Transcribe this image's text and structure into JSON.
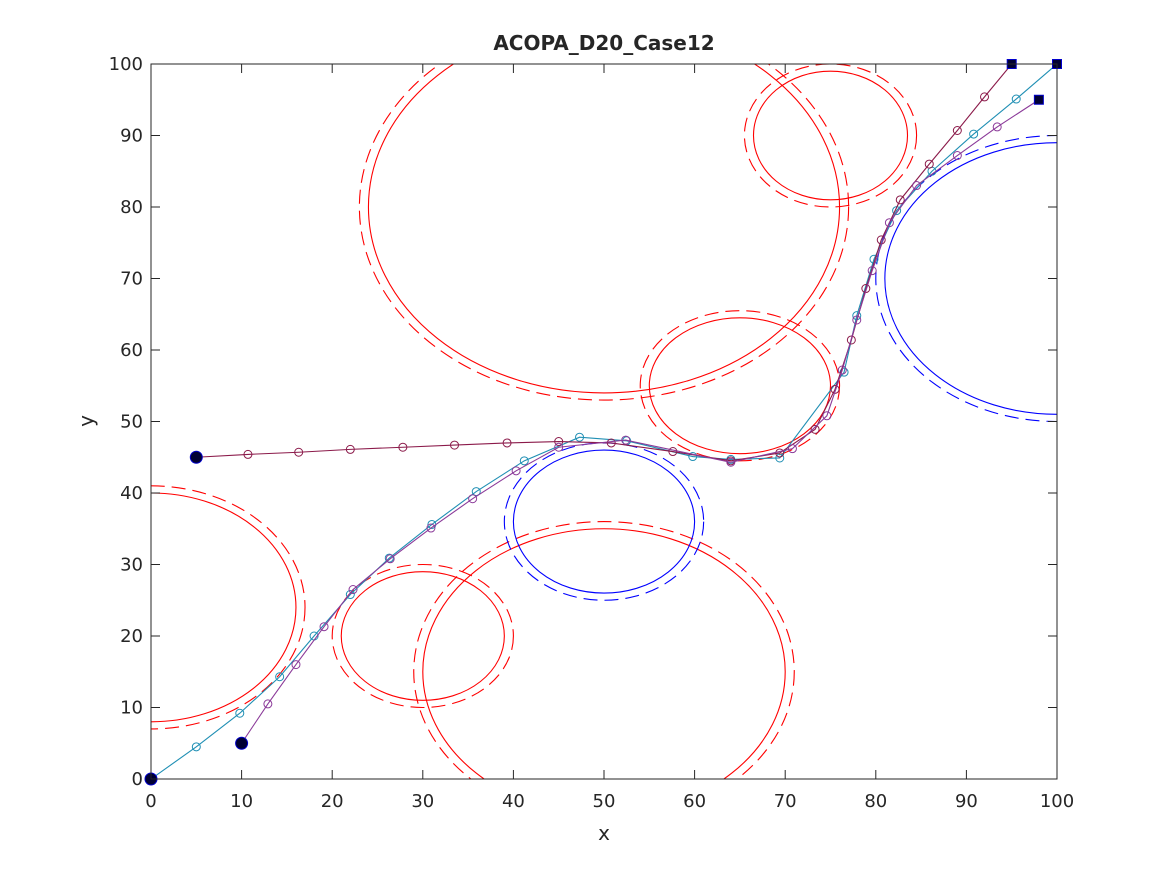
{
  "chart_data": {
    "type": "scatter",
    "title": "ACOPA_D20_Case12",
    "xlabel": "x",
    "ylabel": "y",
    "xlim": [
      0,
      100
    ],
    "ylim": [
      0,
      100
    ],
    "xticks": [
      0,
      10,
      20,
      30,
      40,
      50,
      60,
      70,
      80,
      90,
      100
    ],
    "yticks": [
      0,
      10,
      20,
      30,
      40,
      50,
      60,
      70,
      80,
      90,
      100
    ],
    "grid": false,
    "legend": "none",
    "obstacles": [
      {
        "color": "#ff0000",
        "cx": 50,
        "cy": 80,
        "rx": 26,
        "ry": 26,
        "rx_outer": 27,
        "ry_outer": 27
      },
      {
        "color": "#ff0000",
        "cx": 75,
        "cy": 90,
        "rx": 8.5,
        "ry": 9,
        "rx_outer": 9.5,
        "ry_outer": 10
      },
      {
        "color": "#ff0000",
        "cx": 65,
        "cy": 55,
        "rx": 10,
        "ry": 9.5,
        "rx_outer": 11,
        "ry_outer": 10.5
      },
      {
        "color": "#ff0000",
        "cx": 0,
        "cy": 24,
        "rx": 16,
        "ry": 16,
        "rx_outer": 17,
        "ry_outer": 17
      },
      {
        "color": "#ff0000",
        "cx": 30,
        "cy": 20,
        "rx": 9,
        "ry": 9,
        "rx_outer": 10,
        "ry_outer": 10
      },
      {
        "color": "#ff0000",
        "cx": 50,
        "cy": 15,
        "rx": 20,
        "ry": 20,
        "rx_outer": 21,
        "ry_outer": 21
      },
      {
        "color": "#0000ff",
        "cx": 50,
        "cy": 36,
        "rx": 10,
        "ry": 10,
        "rx_outer": 11,
        "ry_outer": 11
      },
      {
        "color": "#0000ff",
        "cx": 100,
        "cy": 70,
        "rx": 19,
        "ry": 19,
        "rx_outer": 20,
        "ry_outer": 20
      }
    ],
    "series": [
      {
        "color": "#1f8fb4",
        "marker": "circle",
        "start": [
          0,
          0
        ],
        "end": [
          100,
          100
        ],
        "x": [
          0,
          5,
          9.8,
          14.2,
          18,
          22,
          26.3,
          31,
          35.9,
          41.2,
          47.3,
          52.5,
          59.8,
          64,
          69.4,
          76.5,
          77.9,
          79.8,
          82.3,
          86.2,
          90.8,
          95.5,
          100
        ],
        "y": [
          0,
          4.5,
          9.2,
          14.3,
          20,
          25.8,
          30.9,
          35.6,
          40.2,
          44.5,
          47.8,
          47.3,
          45.1,
          44.7,
          44.9,
          56.9,
          64.8,
          72.7,
          79.5,
          85,
          90.2,
          95.1,
          100
        ]
      },
      {
        "color": "#8b1a4a",
        "marker": "circle",
        "start": [
          5,
          45
        ],
        "end": [
          95,
          100
        ],
        "x": [
          5,
          10.7,
          16.3,
          22,
          27.8,
          33.5,
          39.3,
          45,
          50.8,
          57.6,
          64,
          69.4,
          73.3,
          75.5,
          77.3,
          78.9,
          80.6,
          82.7,
          85.9,
          89,
          92,
          95
        ],
        "y": [
          45,
          45.4,
          45.7,
          46.1,
          46.4,
          46.7,
          47,
          47.2,
          47,
          45.8,
          44.5,
          45.6,
          48.9,
          54.5,
          61.4,
          68.6,
          75.4,
          81,
          86,
          90.7,
          95.4,
          100
        ]
      },
      {
        "color": "#8b3a99",
        "marker": "circle",
        "start": [
          10,
          5
        ],
        "end": [
          98,
          95
        ],
        "x": [
          10,
          12.9,
          16,
          19.1,
          22.3,
          26.4,
          30.9,
          35.5,
          40.3,
          45,
          52.4,
          64,
          70.8,
          74.6,
          76.3,
          77.9,
          79.6,
          81.5,
          84.5,
          89,
          93.4,
          98
        ],
        "y": [
          5,
          10.5,
          16,
          21.3,
          26.5,
          30.8,
          35.1,
          39.2,
          43.1,
          46.4,
          47.4,
          44.3,
          46.2,
          50.8,
          57.2,
          64.2,
          71.1,
          77.8,
          83,
          87.2,
          91.2,
          95
        ]
      }
    ]
  }
}
